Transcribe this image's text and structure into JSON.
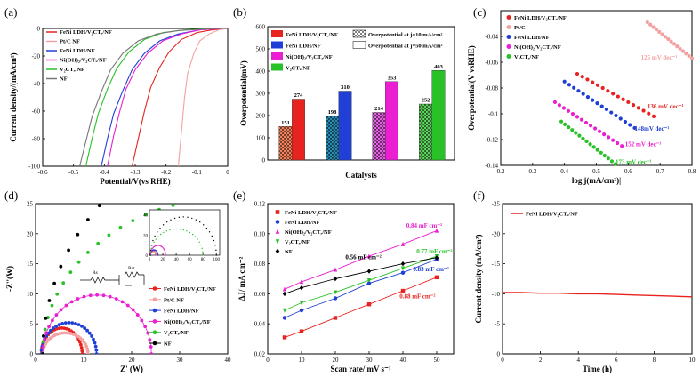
{
  "panels": [
    {
      "id": "a",
      "panel_label": "(a)",
      "chart_data": {
        "type": "line",
        "xlabel": "Potential/V(vs RHE)",
        "ylabel": "Current density/(mA/cm²)",
        "xlim": [
          -0.6,
          0.0
        ],
        "ylim": [
          -100,
          0
        ],
        "xticks": [
          -0.6,
          -0.5,
          -0.4,
          -0.3,
          -0.2,
          -0.1,
          0.0
        ],
        "yticks": [
          -100,
          -80,
          -60,
          -40,
          -20,
          0
        ],
        "series": [
          {
            "name": "FeNi LDH/V₂CTₓ/NF",
            "color": "#e8231f",
            "x": [
              -0.31,
              -0.29,
              -0.27,
              -0.25,
              -0.22,
              -0.19,
              -0.15,
              -0.1,
              -0.05,
              0.0
            ],
            "y": [
              -100,
              -80,
              -60,
              -43,
              -28,
              -17,
              -8,
              -3,
              -1,
              0
            ]
          },
          {
            "name": "Pt/C NF",
            "color": "#f5a0a0",
            "x": [
              -0.16,
              -0.15,
              -0.14,
              -0.13,
              -0.11,
              -0.09,
              -0.06,
              -0.03,
              0.0
            ],
            "y": [
              -100,
              -75,
              -50,
              -33,
              -18,
              -9,
              -4,
              -1,
              0
            ]
          },
          {
            "name": "FeNi LDH/NF",
            "color": "#1f3fd6",
            "x": [
              -0.41,
              -0.39,
              -0.37,
              -0.34,
              -0.31,
              -0.27,
              -0.22,
              -0.16,
              -0.09,
              -0.02
            ],
            "y": [
              -100,
              -80,
              -62,
              -45,
              -30,
              -18,
              -9,
              -4,
              -1,
              0
            ]
          },
          {
            "name": "Ni(OH)₂/V₂CTₓ/NF",
            "color": "#e91fd1",
            "x": [
              -0.39,
              -0.37,
              -0.35,
              -0.33,
              -0.3,
              -0.26,
              -0.21,
              -0.15,
              -0.09,
              -0.02
            ],
            "y": [
              -100,
              -78,
              -60,
              -44,
              -30,
              -18,
              -9,
              -4,
              -1,
              0
            ]
          },
          {
            "name": "V₂CTₓ/NF",
            "color": "#28c128",
            "x": [
              -0.46,
              -0.44,
              -0.42,
              -0.39,
              -0.36,
              -0.32,
              -0.27,
              -0.21,
              -0.14,
              -0.05
            ],
            "y": [
              -100,
              -80,
              -62,
              -44,
              -29,
              -17,
              -8,
              -3,
              -1,
              0
            ]
          },
          {
            "name": "NF",
            "color": "#777777",
            "x": [
              -0.48,
              -0.46,
              -0.44,
              -0.41,
              -0.38,
              -0.34,
              -0.29,
              -0.23,
              -0.16,
              -0.08,
              -0.03
            ],
            "y": [
              -100,
              -82,
              -64,
              -46,
              -30,
              -18,
              -9,
              -4,
              -1.5,
              -0.5,
              0
            ]
          }
        ],
        "legend": "top-left"
      }
    },
    {
      "id": "b",
      "panel_label": "(b)",
      "chart_data": {
        "type": "bar",
        "xlabel": "Catalysts",
        "ylabel": "Overpotential(mV)",
        "ylim": [
          0,
          600
        ],
        "yticks": [
          0,
          100,
          200,
          300,
          400,
          500,
          600
        ],
        "categories": [
          "FeNi LDH/V₂CTₓ/NF",
          "FeNi LDH/NF",
          "Ni(OH)₂/V₂CTₓ/NF",
          "V₂CTₓ/NF"
        ],
        "colors": [
          "#e8231f",
          "#1f3fd6",
          "#e91fd1",
          "#28c128"
        ],
        "hatched_colors": [
          "#f0805a",
          "#2a8cb0",
          "#e060e0",
          "#5ad05a"
        ],
        "series": [
          {
            "name": "Overpotential at j=10 mA/cm²",
            "values": [
              151,
              198,
              214,
              252
            ],
            "hatched": true
          },
          {
            "name": "Overpotential at j=50 mA/cm²",
            "values": [
              274,
              310,
              353,
              403
            ],
            "hatched": false
          }
        ],
        "value_labels": [
          "151",
          "274",
          "198",
          "310",
          "214",
          "353",
          "252",
          "403"
        ],
        "legend": "top"
      }
    },
    {
      "id": "c",
      "panel_label": "(c)",
      "chart_data": {
        "type": "scatter",
        "xlabel": "log|j(mA/cm²)|",
        "ylabel": "Overpotential(V vsRHE)",
        "xlim": [
          0.2,
          0.8
        ],
        "ylim": [
          -0.14,
          -0.02
        ],
        "xticks": [
          0.2,
          0.3,
          0.4,
          0.5,
          0.6,
          0.7,
          0.8
        ],
        "yticks": [
          -0.14,
          -0.12,
          -0.1,
          -0.08,
          -0.06,
          -0.04
        ],
        "series": [
          {
            "name": "FeNi LDH/V₂CTₓ/NF",
            "color": "#e8231f",
            "x0": 0.44,
            "x1": 0.68,
            "y0": -0.069,
            "y1": -0.102,
            "annotation": "136 mV dec⁻¹",
            "ann_x": 0.66,
            "ann_y": -0.096
          },
          {
            "name": "Pt/C",
            "color": "#f5a0a0",
            "x0": 0.66,
            "x1": 0.8,
            "y0": -0.029,
            "y1": -0.057,
            "annotation": "125 mV dec⁻¹",
            "ann_x": 0.64,
            "ann_y": -0.058
          },
          {
            "name": "FeNi LDH/NF",
            "color": "#1f3fd6",
            "x0": 0.4,
            "x1": 0.62,
            "y0": -0.075,
            "y1": -0.111,
            "annotation": "148mV dec⁻¹",
            "ann_x": 0.62,
            "ann_y": -0.113
          },
          {
            "name": "Ni(OH)₂/V₂CTₓ/NF",
            "color": "#e91fd1",
            "x0": 0.37,
            "x1": 0.58,
            "y0": -0.091,
            "y1": -0.125,
            "annotation": "152 mV dec⁻¹",
            "ann_x": 0.59,
            "ann_y": -0.125
          },
          {
            "name": "V₂CTₓ/NF",
            "color": "#28c128",
            "x0": 0.39,
            "x1": 0.56,
            "y0": -0.106,
            "y1": -0.139,
            "annotation": "173 mV dec⁻¹",
            "ann_x": 0.56,
            "ann_y": -0.139
          }
        ],
        "legend": "top-left"
      }
    },
    {
      "id": "d",
      "panel_label": "(d)",
      "chart_data": {
        "type": "scatter",
        "xlabel": "Z' (W)",
        "ylabel": "-Z''(W)",
        "xlim": [
          0,
          40
        ],
        "ylim": [
          0,
          25
        ],
        "xticks": [
          0,
          10,
          20,
          30,
          40
        ],
        "yticks": [
          0,
          5,
          10,
          15,
          20,
          25
        ],
        "inset_xticks": [
          "0",
          "20",
          "40",
          "60",
          "80",
          "100"
        ],
        "inset_yticks": [
          "0",
          "20",
          "40"
        ],
        "circuit_labels": [
          "Rs",
          "Rct"
        ],
        "series": [
          {
            "name": "FeNi LDH/V₂CTₓ/NF",
            "color": "#e8231f",
            "marker": "circle",
            "x_start": 1.2,
            "x_end": 9.7,
            "peak": 4.3
          },
          {
            "name": "Pt/C NF",
            "color": "#f5a0a0",
            "marker": "circle",
            "x_start": 1.5,
            "x_end": 10.9,
            "peak": 3.5
          },
          {
            "name": "FeNi LDH/NF",
            "color": "#1f3fd6",
            "marker": "circle",
            "x_start": 1.2,
            "x_end": 12.7,
            "peak": 5.2
          },
          {
            "name": "Ni(OH)₂/V₂CTₓ/NF",
            "color": "#e91fd1",
            "marker": "circle",
            "x_start": 1.5,
            "x_end": 24.1,
            "peak": 9.8
          },
          {
            "name": "V₂CTₓ/NF",
            "color": "#28c128",
            "marker": "circle",
            "x_start": 1.5,
            "x_end": 80,
            "peak": 26
          },
          {
            "name": "NF",
            "color": "#000000",
            "marker": "circle",
            "x_start": 1.5,
            "x_end": 100,
            "peak": 38
          }
        ],
        "legend": "bottom-right"
      }
    },
    {
      "id": "e",
      "panel_label": "(e)",
      "chart_data": {
        "type": "scatter",
        "xlabel": "Scan rate/ mV s⁻¹",
        "ylabel": "ΔJ/ mA cm⁻²",
        "xlim": [
          0,
          55
        ],
        "ylim": [
          0.02,
          0.12
        ],
        "xticks": [
          0,
          10,
          20,
          30,
          40,
          50
        ],
        "yticks": [
          0.02,
          0.04,
          0.06,
          0.08,
          0.1,
          0.12
        ],
        "x": [
          5,
          10,
          20,
          30,
          40,
          50
        ],
        "series": [
          {
            "name": "FeNi LDH/V₂CTₓ/NF",
            "color": "#e8231f",
            "marker": "square",
            "y": [
              0.031,
              0.035,
              0.044,
              0.053,
              0.062,
              0.071
            ],
            "annotation": "0.88 mF cm⁻²",
            "ann_x": 39,
            "ann_y": 0.057
          },
          {
            "name": "FeNi LDH/NF",
            "color": "#1f3fd6",
            "marker": "circle",
            "y": [
              0.044,
              0.049,
              0.057,
              0.067,
              0.074,
              0.083
            ],
            "annotation": "0.83 mF cm⁻²",
            "ann_x": 43,
            "ann_y": 0.075
          },
          {
            "name": "Ni(OH)₂/V₂CTₓ/NF",
            "color": "#e91fd1",
            "marker": "triangle",
            "y": [
              0.063,
              0.068,
              0.076,
              0.085,
              0.093,
              0.102
            ],
            "annotation": "0.84 mF cm⁻²",
            "ann_x": 41,
            "ann_y": 0.104
          },
          {
            "name": "V₂CTₓ/NF",
            "color": "#28c128",
            "marker": "triangle-down",
            "y": [
              0.049,
              0.054,
              0.061,
              0.069,
              0.077,
              0.085
            ],
            "annotation": "0.77 mF cm⁻²",
            "ann_x": 44,
            "ann_y": 0.087
          },
          {
            "name": "NF",
            "color": "#000000",
            "marker": "diamond",
            "y": [
              0.06,
              0.064,
              0.07,
              0.075,
              0.08,
              0.084
            ],
            "annotation": "0.56 mF cm⁻²",
            "ann_x": 23,
            "ann_y": 0.083
          }
        ],
        "legend": "top-left"
      }
    },
    {
      "id": "f",
      "panel_label": "(f)",
      "chart_data": {
        "type": "line",
        "xlabel": "Time (h)",
        "ylabel": "Current density (mA/cm²)",
        "xlim": [
          0,
          10
        ],
        "ylim": [
          0,
          -25
        ],
        "xticks": [
          0,
          2,
          4,
          6,
          8,
          10
        ],
        "yticks": [
          0,
          -5,
          -10,
          -15,
          -20,
          -25
        ],
        "series": [
          {
            "name": "FeNi LDH/V₂CTₓ/NF",
            "color": "#e8231f",
            "x": [
              0,
              1,
              2,
              3,
              4,
              5,
              6,
              7,
              8,
              9,
              10
            ],
            "y": [
              -10.2,
              -10.2,
              -10.1,
              -10.1,
              -10.0,
              -10.0,
              -9.9,
              -9.8,
              -9.7,
              -9.6,
              -9.5
            ]
          }
        ],
        "legend": "top-left"
      }
    }
  ]
}
